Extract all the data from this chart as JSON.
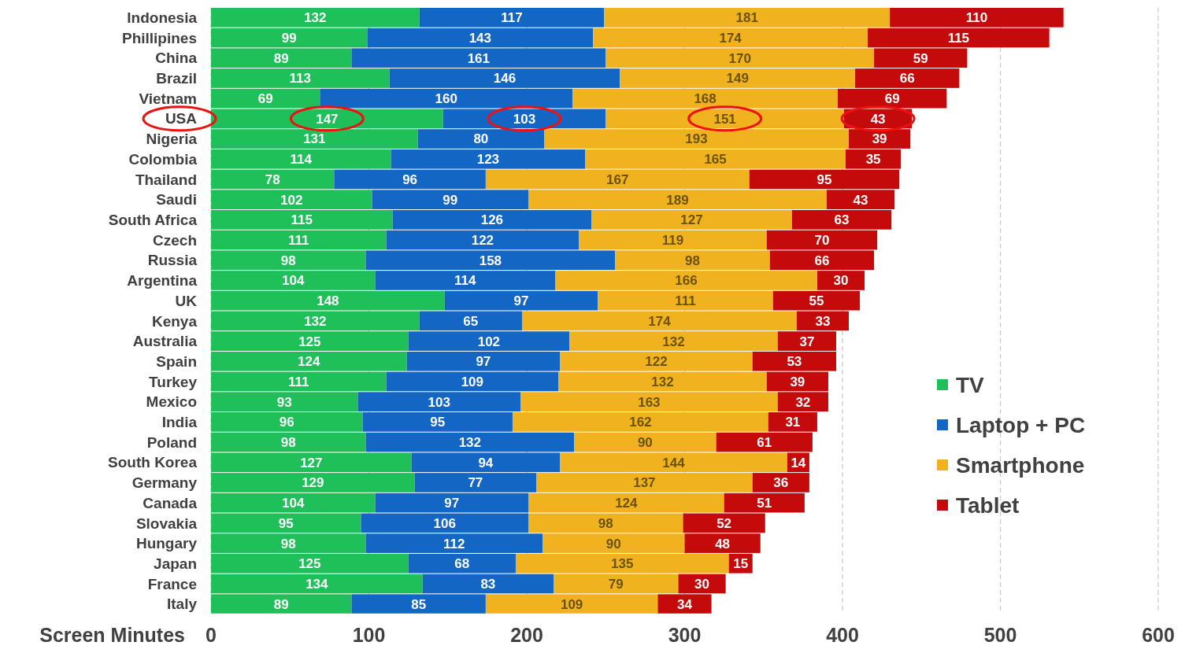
{
  "chart_data": {
    "type": "bar",
    "orientation": "horizontal",
    "stacked": true,
    "xlabel": "Screen Minutes",
    "categories": [
      "Indonesia",
      "Phillipines",
      "China",
      "Brazil",
      "Vietnam",
      "USA",
      "Nigeria",
      "Colombia",
      "Thailand",
      "Saudi",
      "South Africa",
      "Czech",
      "Russia",
      "Argentina",
      "UK",
      "Kenya",
      "Australia",
      "Spain",
      "Turkey",
      "Mexico",
      "India",
      "Poland",
      "South Korea",
      "Germany",
      "Canada",
      "Slovakia",
      "Hungary",
      "Japan",
      "France",
      "Italy"
    ],
    "series": [
      {
        "name": "TV",
        "color": "#1fbf5a",
        "values": [
          132,
          99,
          89,
          113,
          69,
          147,
          131,
          114,
          78,
          102,
          115,
          111,
          98,
          104,
          148,
          132,
          125,
          124,
          111,
          93,
          96,
          98,
          127,
          129,
          104,
          95,
          98,
          125,
          134,
          89
        ]
      },
      {
        "name": "Laptop + PC",
        "color": "#1466c4",
        "values": [
          117,
          143,
          161,
          146,
          160,
          103,
          80,
          123,
          96,
          99,
          126,
          122,
          158,
          114,
          97,
          65,
          102,
          97,
          109,
          103,
          95,
          132,
          94,
          77,
          97,
          106,
          112,
          68,
          83,
          85
        ]
      },
      {
        "name": "Smartphone",
        "color": "#f0b21e",
        "values": [
          181,
          174,
          170,
          149,
          168,
          151,
          193,
          165,
          167,
          189,
          127,
          119,
          98,
          166,
          111,
          174,
          132,
          122,
          132,
          163,
          162,
          90,
          144,
          137,
          124,
          98,
          90,
          135,
          79,
          109
        ]
      },
      {
        "name": "Tablet",
        "color": "#c40a0a",
        "values": [
          110,
          115,
          59,
          66,
          69,
          43,
          39,
          35,
          95,
          43,
          63,
          70,
          66,
          30,
          55,
          33,
          37,
          53,
          39,
          32,
          31,
          61,
          14,
          36,
          51,
          52,
          48,
          15,
          30,
          34
        ]
      }
    ],
    "xlim": [
      0,
      600
    ],
    "xticks": [
      0,
      100,
      200,
      300,
      400,
      500,
      600
    ],
    "grid": "x",
    "legend": "right",
    "data_labels": true
  }
}
